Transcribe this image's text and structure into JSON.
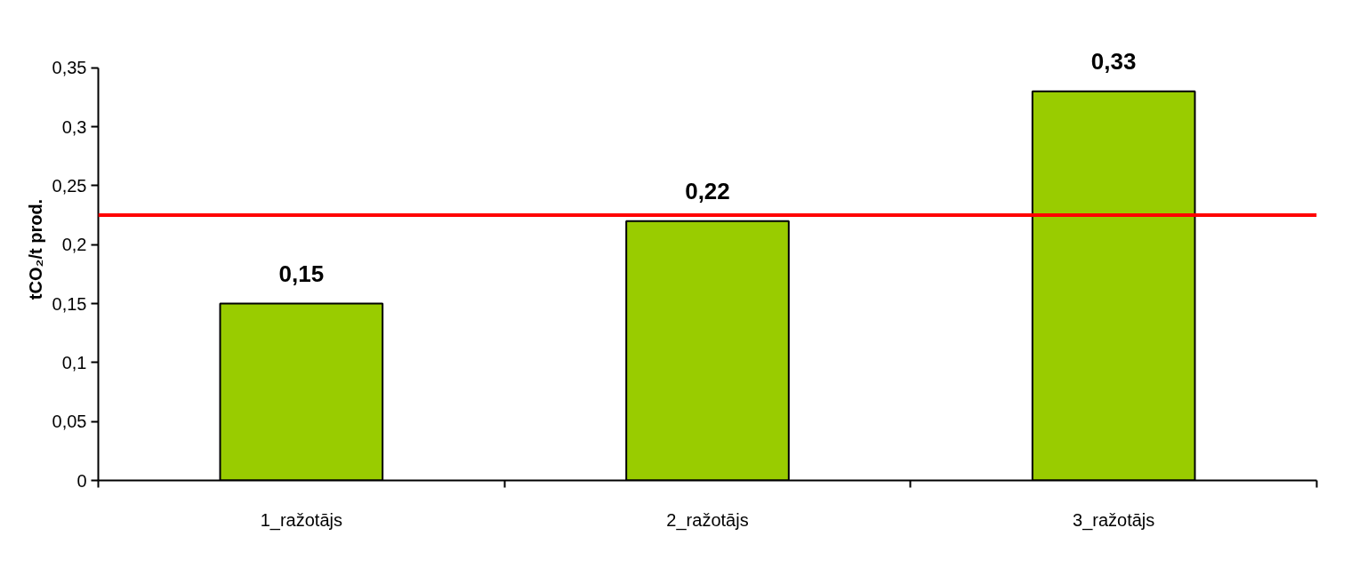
{
  "chart_data": {
    "type": "bar",
    "ylabel": "tCO₂/t prod.",
    "categories": [
      "1_ražotājs",
      "2_ražotājs",
      "3_ražotājs"
    ],
    "values": [
      0.15,
      0.22,
      0.33
    ],
    "color": "#99cc00",
    "value_labels": [
      "0,15",
      "0,22",
      "0,33"
    ],
    "ylim": [
      0,
      0.35
    ],
    "yticks": [
      0,
      {
        "value": 0.05,
        "label": "0,05"
      },
      {
        "value": 0.1,
        "label": "0,1"
      },
      {
        "value": 0.15,
        "label": "0,15"
      },
      {
        "value": 0.2,
        "label": "0,2"
      },
      {
        "value": 0.25,
        "label": "0,25"
      },
      {
        "value": 0.3,
        "label": "0,3"
      },
      {
        "value": 0.35,
        "label": "0,35"
      }
    ],
    "ref_lines": [
      {
        "axis": "y",
        "value": 0.225,
        "color": "#ff0000"
      }
    ],
    "grid": false
  }
}
